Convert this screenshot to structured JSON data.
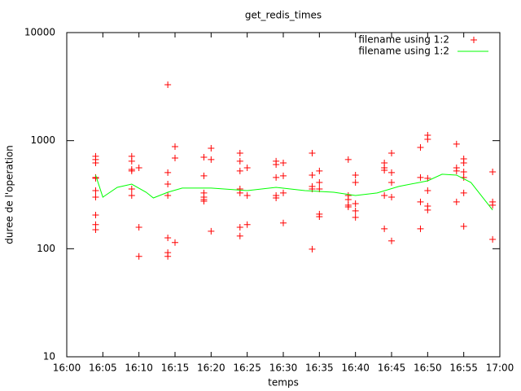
{
  "chart_data": {
    "type": "scatter",
    "title": "get_redis_times",
    "x_label": "temps",
    "y_label": "duree de l'operation",
    "log_y": true,
    "legend": "top-right",
    "xlim": [
      "16:00",
      "17:00"
    ],
    "xticks": [
      "16:00",
      "16:05",
      "16:10",
      "16:15",
      "16:20",
      "16:25",
      "16:30",
      "16:35",
      "16:40",
      "16:45",
      "16:50",
      "16:55",
      "17:00"
    ],
    "ylim": [
      10,
      10000
    ],
    "yticks": [
      10,
      100,
      1000,
      10000
    ],
    "series": [
      {
        "name": "filename using 1:2",
        "color": "#ff0000",
        "style": "points",
        "x": [
          "16:04",
          "16:04",
          "16:04",
          "16:04",
          "16:04",
          "16:04",
          "16:04",
          "16:04",
          "16:04",
          "16:04",
          "16:09",
          "16:09",
          "16:09",
          "16:09",
          "16:09",
          "16:09",
          "16:10",
          "16:10",
          "16:10",
          "16:14",
          "16:14",
          "16:14",
          "16:14",
          "16:14",
          "16:14",
          "16:14",
          "16:15",
          "16:15",
          "16:15",
          "16:19",
          "16:19",
          "16:19",
          "16:19",
          "16:19",
          "16:19",
          "16:20",
          "16:20",
          "16:20",
          "16:24",
          "16:24",
          "16:24",
          "16:24",
          "16:24",
          "16:24",
          "16:24",
          "16:25",
          "16:25",
          "16:25",
          "16:29",
          "16:29",
          "16:29",
          "16:29",
          "16:29",
          "16:30",
          "16:30",
          "16:30",
          "16:30",
          "16:34",
          "16:34",
          "16:34",
          "16:34",
          "16:34",
          "16:35",
          "16:35",
          "16:35",
          "16:35",
          "16:35",
          "16:39",
          "16:39",
          "16:39",
          "16:39",
          "16:39",
          "16:40",
          "16:40",
          "16:40",
          "16:40",
          "16:40",
          "16:44",
          "16:44",
          "16:44",
          "16:44",
          "16:44",
          "16:45",
          "16:45",
          "16:45",
          "16:45",
          "16:45",
          "16:49",
          "16:49",
          "16:49",
          "16:49",
          "16:50",
          "16:50",
          "16:50",
          "16:50",
          "16:50",
          "16:50",
          "16:54",
          "16:54",
          "16:54",
          "16:54",
          "16:55",
          "16:55",
          "16:55",
          "16:55",
          "16:55",
          "16:55",
          "16:59",
          "16:59",
          "16:59",
          "16:59"
        ],
        "values": [
          716,
          668,
          622,
          456,
          448,
          345,
          300,
          205,
          167,
          150,
          716,
          645,
          542,
          524,
          357,
          311,
          561,
          158,
          85,
          3296,
          506,
          396,
          311,
          126,
          92,
          85,
          881,
          691,
          114,
          703,
          472,
          328,
          300,
          285,
          275,
          851,
          668,
          145,
          767,
          645,
          524,
          357,
          328,
          158,
          131,
          561,
          311,
          167,
          645,
          601,
          456,
          311,
          295,
          622,
          472,
          328,
          173,
          767,
          480,
          377,
          357,
          99,
          524,
          410,
          357,
          209,
          198,
          668,
          311,
          285,
          253,
          244,
          480,
          410,
          261,
          224,
          195,
          622,
          561,
          532,
          311,
          153,
          767,
          506,
          410,
          300,
          118,
          866,
          456,
          271,
          153,
          1123,
          1030,
          448,
          345,
          248,
          228,
          929,
          561,
          524,
          271,
          679,
          622,
          514,
          456,
          328,
          161,
          514,
          271,
          253,
          122
        ]
      },
      {
        "name": "filename using 1:2",
        "color": "#00ff00",
        "style": "line",
        "x": [
          "16:04",
          "16:05",
          "16:07",
          "16:09",
          "16:11",
          "16:12",
          "16:14",
          "16:16",
          "16:20",
          "16:25",
          "16:29",
          "16:33",
          "16:37",
          "16:40",
          "16:43",
          "16:46",
          "16:50",
          "16:52",
          "16:54",
          "16:56",
          "16:59"
        ],
        "values": [
          480,
          300,
          370,
          396,
          333,
          295,
          333,
          364,
          364,
          345,
          370,
          345,
          333,
          311,
          328,
          377,
          425,
          489,
          480,
          410,
          228
        ]
      }
    ]
  }
}
